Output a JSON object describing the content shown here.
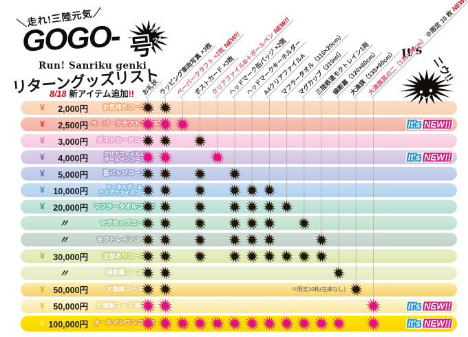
{
  "logo": {
    "slogan": "＼走れ!三陸元気／",
    "title_main": "GOGO-",
    "title_suffix": "号",
    "years": [
      "'23",
      "'24"
    ],
    "subtitle": "Run! Sanriku genki",
    "list_title": "リターングッズリスト",
    "update_date": "8/18",
    "update_text": "新アイテム追加",
    "update_bang": "!!"
  },
  "mascot": {
    "its": "It's",
    "niu": "ニウ!!"
  },
  "new_badge_label": {
    "its": "It's",
    "new": "NEW!!"
  },
  "colors": {
    "star_black": "#221607",
    "star_pink": "#e60f7d",
    "guide_line": "#b5aca4",
    "badge_its_outline": "#1e8fd5",
    "badge_new_outline": "#d6187e",
    "header_highlight": "#e8526e",
    "header_new_tag": "#e60012"
  },
  "chart_data": {
    "type": "table",
    "title": "リターングッズリスト",
    "subtitle": "8/18 新アイテム追加!!",
    "star_legend": {
      "1": "black star = item included",
      "2": "pink star = new item included"
    },
    "columns": [
      {
        "label": "お礼状"
      },
      {
        "label": "ラッピング車両写真 ×3枚"
      },
      {
        "label": "ペーパークラフト ×2枚",
        "highlight": true,
        "new_tag": "NEW!!"
      },
      {
        "label": "ポストカード ×3枚"
      },
      {
        "label": "クリアファイルB＋ボールペン",
        "highlight": true,
        "new_tag": "NEW!!"
      },
      {
        "label": "ヘッドマーク缶バッジ ×2個"
      },
      {
        "label": "ヘッドマークキーホルダー"
      },
      {
        "label": "A4クリアファイルA"
      },
      {
        "label": "マフラータオル（110×20cm）"
      },
      {
        "label": "マグカップ（310ml）"
      },
      {
        "label": "三陸鉄道モクトレイン1両"
      },
      {
        "label": "横断幕（120×60cm）"
      },
      {
        "label": "大漁旗（135×90cm）"
      },
      {
        "label": "大漁旗其の二（135×90cm）",
        "highlight": true,
        "suffix": "※限定 10 枚",
        "new_tag": "NEW!!"
      }
    ],
    "rows": [
      {
        "yen": "¥",
        "amount": "2,000円",
        "course": [
          "お気持ちコース"
        ],
        "bg": "#fbdcc5",
        "bg2": "#f9d2b4",
        "yen_color": "#f08030",
        "outline": "#f2a468"
      },
      {
        "yen": "¥",
        "amount": "2,500円",
        "course": [
          "ペーパークラフトコース"
        ],
        "bg": "#f6c3b6",
        "bg2": "#f3b2a4",
        "yen_color": "#e5392e",
        "outline": "#ef8678",
        "badge": true
      },
      {
        "yen": "¥",
        "amount": "3,000円",
        "course": [
          "ポストカードコース"
        ],
        "bg": "#fadae9",
        "bg2": "#f7c9e0",
        "yen_color": "#e971ad",
        "outline": "#f29cc6"
      },
      {
        "yen": "¥",
        "amount": "4,000円",
        "course": [
          "クリアファイル＆",
          "ボールペンコース"
        ],
        "bg": "#ddd1e9",
        "bg2": "#d2c2e2",
        "yen_color": "#8a5cb0",
        "outline": "#ab8ecb",
        "badge": true
      },
      {
        "yen": "¥",
        "amount": "5,000円",
        "course": [
          "缶バッジコース"
        ],
        "bg": "#c9d3ed",
        "bg2": "#bcc8e8",
        "yen_color": "#5a6cba",
        "outline": "#8f9ed6"
      },
      {
        "yen": "¥",
        "amount": "10,000円",
        "course": [
          "キーホルダー＆",
          "クリアファイルコース"
        ],
        "bg": "#c4ddf3",
        "bg2": "#b2d2ef",
        "yen_color": "#3d8cd0",
        "outline": "#7cb8e5"
      },
      {
        "yen": "¥",
        "amount": "20,000円",
        "course": [
          "マフラータオルコース"
        ],
        "bg": "#c9e7de",
        "bg2": "#b6dfd3",
        "yen_color": "#2ba189",
        "outline": "#72c5ae"
      },
      {
        "ditto": "〃",
        "course": [
          "マグカップコース"
        ],
        "bg": "#d0e9da",
        "bg2": "#c0e2cd",
        "yen_color": "#3aa864",
        "outline": "#82cb9d"
      },
      {
        "ditto": "〃",
        "course": [
          "モクトレインコース"
        ],
        "bg": "#cfdcd6",
        "bg2": "#c1d2ca",
        "yen_color": "#7a988c",
        "outline": "#9eb5aa"
      },
      {
        "yen": "¥",
        "amount": "30,000円",
        "course": [
          "全部ありコース"
        ],
        "bg": "#e7efc6",
        "bg2": "#dde9ae",
        "yen_color": "#a2bb40",
        "outline": "#c0d26e"
      },
      {
        "ditto": "〃",
        "course": [
          "横断幕コース"
        ],
        "bg": "#ecf2d2",
        "bg2": "#e4edc0",
        "yen_color": "#b8cc70",
        "outline": "#cedc94"
      },
      {
        "yen": "¥",
        "amount": "50,000円",
        "course": [
          "大漁旗コース"
        ],
        "bg": "#fcedb0",
        "bg2": "#f5d066",
        "yen_color": "#f0a81e",
        "outline": "#f4ca7c",
        "note": "※限定10枚(在庫なし)"
      },
      {
        "yen": "¥",
        "amount": "50,000円",
        "course": [
          "大漁旗コース 其の二"
        ],
        "bg": "#fdf5d2",
        "bg2": "#fae89c",
        "yen_color": "#e3c42e",
        "outline": "#ecd98c",
        "badge": true
      },
      {
        "yen": "¥",
        "amount": "100,000円",
        "course": [
          "オールインワンコース"
        ],
        "bg": "#ffe408",
        "bg2": "#fbd500",
        "yen_color": "#f7e96a",
        "outline": "#f2a01e",
        "badge": true
      }
    ],
    "matrix": [
      [
        1,
        1,
        0,
        0,
        0,
        0,
        0,
        0,
        0,
        0,
        0,
        0,
        0,
        0
      ],
      [
        2,
        2,
        2,
        0,
        0,
        0,
        0,
        0,
        0,
        0,
        0,
        0,
        0,
        0
      ],
      [
        1,
        1,
        0,
        1,
        0,
        0,
        0,
        0,
        0,
        0,
        0,
        0,
        0,
        0
      ],
      [
        2,
        2,
        0,
        0,
        2,
        0,
        0,
        0,
        0,
        0,
        0,
        0,
        0,
        0
      ],
      [
        1,
        1,
        0,
        1,
        0,
        1,
        0,
        0,
        0,
        0,
        0,
        0,
        0,
        0
      ],
      [
        1,
        1,
        0,
        1,
        0,
        1,
        1,
        1,
        0,
        0,
        0,
        0,
        0,
        0
      ],
      [
        1,
        1,
        0,
        1,
        0,
        1,
        1,
        1,
        1,
        0,
        0,
        0,
        0,
        0
      ],
      [
        1,
        1,
        0,
        1,
        0,
        1,
        1,
        1,
        0,
        1,
        0,
        0,
        0,
        0
      ],
      [
        1,
        1,
        0,
        1,
        0,
        1,
        1,
        1,
        0,
        0,
        1,
        0,
        0,
        0
      ],
      [
        1,
        1,
        0,
        1,
        0,
        1,
        1,
        1,
        1,
        1,
        1,
        0,
        0,
        0
      ],
      [
        1,
        1,
        0,
        0,
        0,
        0,
        0,
        0,
        0,
        0,
        0,
        1,
        0,
        0
      ],
      [
        1,
        1,
        0,
        0,
        0,
        0,
        0,
        0,
        0,
        0,
        0,
        0,
        1,
        0
      ],
      [
        2,
        2,
        0,
        0,
        0,
        0,
        0,
        0,
        0,
        0,
        0,
        0,
        0,
        2
      ],
      [
        2,
        2,
        2,
        2,
        2,
        2,
        2,
        2,
        2,
        2,
        2,
        2,
        0,
        2
      ]
    ]
  }
}
